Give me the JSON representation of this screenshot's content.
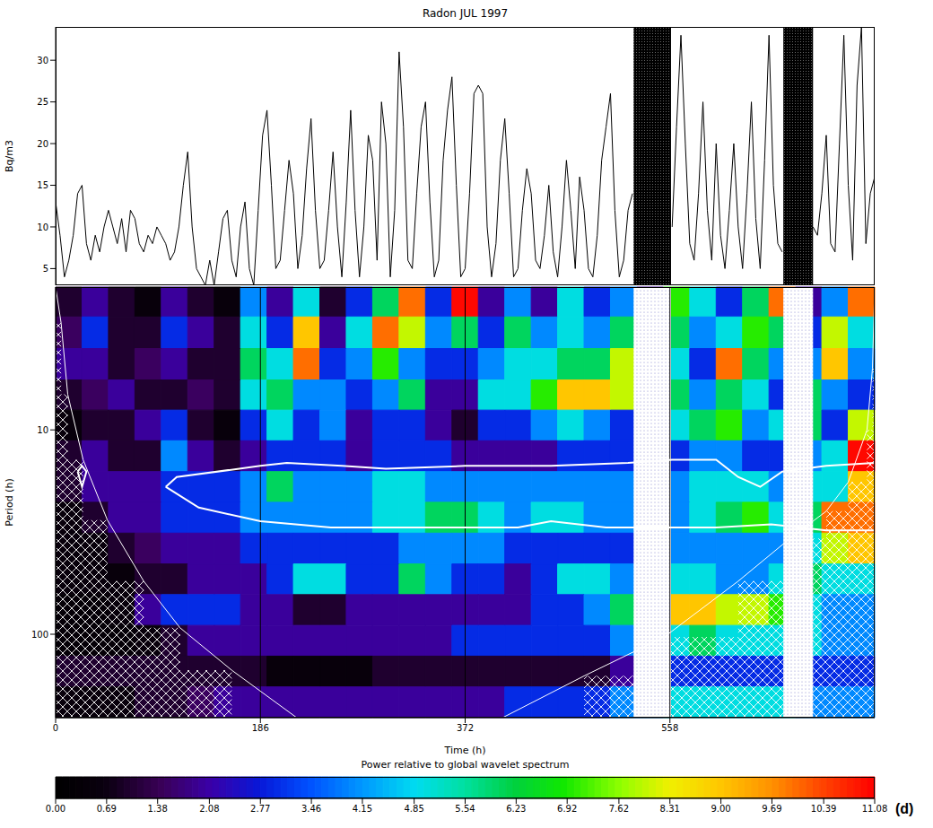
{
  "chart_data": [
    {
      "type": "line",
      "title": "Radon JUL 1997",
      "y_label": "Bq/m3",
      "color": "#000000",
      "xlim": [
        0,
        744
      ],
      "ylim": [
        3,
        34
      ],
      "yticks": [
        5,
        10,
        15,
        20,
        25,
        30
      ],
      "tick_labels": "y",
      "data_gaps": [
        [
          525,
          559
        ],
        [
          661,
          688
        ]
      ],
      "x": [
        0,
        4,
        8,
        12,
        16,
        20,
        24,
        28,
        32,
        36,
        40,
        44,
        48,
        52,
        56,
        60,
        64,
        68,
        72,
        76,
        80,
        84,
        88,
        92,
        96,
        100,
        104,
        108,
        112,
        116,
        120,
        124,
        128,
        132,
        136,
        140,
        144,
        148,
        152,
        156,
        160,
        164,
        168,
        172,
        176,
        180,
        184,
        188,
        192,
        196,
        200,
        204,
        208,
        212,
        216,
        220,
        224,
        228,
        232,
        236,
        240,
        244,
        248,
        252,
        256,
        260,
        264,
        268,
        272,
        276,
        280,
        284,
        288,
        292,
        296,
        300,
        304,
        308,
        312,
        316,
        320,
        324,
        328,
        332,
        336,
        340,
        344,
        348,
        352,
        356,
        360,
        364,
        368,
        372,
        376,
        380,
        384,
        388,
        392,
        396,
        400,
        404,
        408,
        412,
        416,
        420,
        424,
        428,
        432,
        436,
        440,
        444,
        448,
        452,
        456,
        460,
        464,
        468,
        472,
        476,
        480,
        484,
        488,
        492,
        496,
        500,
        504,
        508,
        512,
        516,
        520,
        524,
        528,
        532,
        536,
        540,
        544,
        548,
        552,
        556,
        560,
        564,
        568,
        572,
        576,
        580,
        584,
        588,
        592,
        596,
        600,
        604,
        608,
        612,
        616,
        620,
        624,
        628,
        632,
        636,
        640,
        644,
        648,
        652,
        656,
        660,
        664,
        668,
        672,
        676,
        680,
        684,
        688,
        692,
        696,
        700,
        704,
        708,
        712,
        716,
        720,
        724,
        728,
        732,
        736,
        740,
        744
      ],
      "values": [
        13,
        9,
        4,
        6,
        9,
        14,
        15,
        8,
        6,
        9,
        7,
        10,
        12,
        10,
        8,
        11,
        7,
        12,
        11,
        8,
        7,
        9,
        8,
        10,
        9,
        8,
        6,
        7,
        10,
        15,
        19,
        10,
        5,
        4,
        3,
        6,
        3,
        7,
        11,
        12,
        6,
        4,
        10,
        13,
        5,
        3,
        12,
        21,
        24,
        15,
        5,
        6,
        12,
        18,
        14,
        5,
        9,
        17,
        23,
        12,
        5,
        6,
        12,
        19,
        10,
        4,
        13,
        24,
        12,
        4,
        10,
        21,
        18,
        6,
        25,
        20,
        4,
        12,
        31,
        22,
        6,
        5,
        14,
        22,
        25,
        13,
        4,
        6,
        18,
        24,
        28,
        15,
        4,
        5,
        14,
        26,
        27,
        26,
        10,
        4,
        8,
        18,
        23,
        14,
        4,
        5,
        12,
        17,
        14,
        6,
        5,
        9,
        15,
        7,
        4,
        10,
        18,
        12,
        5,
        16,
        12,
        5,
        4,
        9,
        18,
        22,
        26,
        12,
        4,
        6,
        12,
        14,
        null,
        null,
        null,
        null,
        null,
        null,
        null,
        null,
        10,
        22,
        33,
        20,
        8,
        6,
        14,
        25,
        12,
        6,
        20,
        9,
        5,
        12,
        20,
        10,
        5,
        14,
        25,
        11,
        5,
        18,
        33,
        15,
        8,
        7,
        null,
        null,
        null,
        null,
        null,
        null,
        10,
        9,
        14,
        21,
        8,
        7,
        20,
        33,
        15,
        6,
        27,
        34,
        8,
        14,
        16
      ]
    },
    {
      "type": "heatmap",
      "x_label": "Time (h)",
      "y_label": "Period (h)",
      "log": "y",
      "grid": true,
      "xlim": [
        0,
        744
      ],
      "xticks": [
        0,
        186,
        372,
        558
      ],
      "ylim": [
        2,
        256
      ],
      "yticks": [
        10,
        100
      ],
      "data_gaps": [
        [
          525,
          559
        ],
        [
          661,
          688
        ]
      ],
      "time_edges": [
        0,
        24,
        48,
        72,
        96,
        120,
        144,
        168,
        192,
        216,
        240,
        264,
        288,
        312,
        336,
        360,
        384,
        408,
        432,
        456,
        480,
        504,
        528,
        552,
        576,
        600,
        624,
        648,
        672,
        696,
        720,
        744
      ],
      "period_edges": [
        2,
        2.8,
        4,
        5.7,
        8,
        11.3,
        16,
        22.6,
        32,
        45.3,
        64,
        90.5,
        128,
        181,
        256
      ],
      "cells": [
        [
          1,
          2,
          1,
          0.5,
          2,
          1,
          0.5,
          4,
          2,
          5,
          1,
          3,
          6,
          10,
          3,
          11,
          2,
          4,
          2,
          5,
          3,
          4,
          2,
          7,
          5,
          3,
          6,
          10,
          2,
          4,
          10
        ],
        [
          1.5,
          3,
          1,
          1,
          3,
          2,
          1,
          5,
          3,
          9,
          2,
          5,
          10,
          8,
          4,
          6,
          3,
          6,
          4,
          5,
          4,
          6,
          2,
          6,
          4,
          5,
          7,
          6,
          3,
          8,
          5
        ],
        [
          2,
          2,
          1,
          1.5,
          2,
          1,
          1,
          6,
          5,
          10,
          3,
          4,
          7,
          4,
          3,
          3,
          4,
          5,
          5,
          6,
          6,
          8,
          2,
          5,
          3,
          10,
          6,
          4,
          4,
          9,
          4
        ],
        [
          1,
          1.5,
          2,
          1,
          1,
          1.5,
          1,
          5,
          6,
          4,
          4,
          3,
          4,
          6,
          2,
          2,
          5,
          5,
          7,
          9,
          9,
          8,
          2,
          6,
          4,
          6,
          5,
          3,
          6,
          4,
          3
        ],
        [
          0.5,
          1,
          1,
          2,
          3,
          1,
          0.5,
          3,
          5,
          3,
          4,
          2,
          3,
          3,
          2,
          1,
          3,
          3,
          4,
          5,
          4,
          3,
          2,
          5,
          6,
          7,
          4,
          5,
          6,
          3,
          8
        ],
        [
          1,
          2,
          1,
          1,
          4,
          2,
          1,
          2,
          3,
          3,
          3,
          2,
          3,
          3,
          3,
          2,
          2,
          2,
          2,
          3,
          3,
          3,
          2,
          3,
          4,
          4,
          3,
          3,
          4,
          5,
          11
        ],
        [
          1,
          2,
          2,
          2,
          3,
          3,
          3,
          4,
          6,
          4,
          4,
          4,
          5,
          5,
          4,
          4,
          4,
          4,
          4,
          4,
          4,
          4,
          3,
          4,
          5,
          5,
          5,
          4,
          5,
          5,
          9
        ],
        [
          0.5,
          1,
          2,
          2,
          3,
          3,
          3,
          4,
          4,
          4,
          4,
          4,
          5,
          5,
          6,
          6,
          5,
          4,
          5,
          5,
          4,
          4,
          3,
          4,
          5,
          6,
          7,
          5,
          6,
          10,
          10
        ],
        [
          0.5,
          0.5,
          1,
          1.5,
          2,
          2,
          2,
          3,
          3,
          3,
          3,
          3,
          3,
          4,
          4,
          4,
          4,
          3,
          3,
          3,
          3,
          3,
          3,
          4,
          4,
          4,
          4,
          4,
          5,
          8,
          9
        ],
        [
          0.5,
          0.5,
          0.5,
          1,
          1,
          2,
          2,
          2,
          3,
          5,
          5,
          3,
          3,
          6,
          4,
          3,
          3,
          2,
          3,
          5,
          5,
          4,
          4,
          5,
          5,
          4,
          4,
          5,
          6,
          5,
          5
        ],
        [
          0.3,
          0.3,
          0.5,
          2,
          3,
          3,
          3,
          2,
          2,
          1,
          1,
          2,
          2,
          2,
          2,
          2,
          2,
          2,
          3,
          3,
          4,
          6,
          7,
          9,
          9,
          8,
          8,
          7,
          5,
          4,
          4
        ],
        [
          0.3,
          0.3,
          0.3,
          0.5,
          1,
          2,
          2,
          2,
          2,
          2,
          2,
          2,
          2,
          2,
          2,
          3,
          3,
          3,
          3,
          3,
          3,
          4,
          5,
          5,
          6,
          5,
          5,
          5,
          5,
          4,
          4
        ],
        [
          1,
          1,
          1,
          1,
          1,
          1,
          1,
          1,
          0.5,
          0.5,
          0.5,
          0.5,
          1,
          1,
          1,
          1,
          1,
          1,
          1,
          1,
          1,
          2,
          2,
          3,
          3,
          3,
          3,
          3,
          3,
          3,
          3
        ],
        [
          0.5,
          0.5,
          0.5,
          1,
          1,
          1.5,
          2,
          2,
          2,
          2,
          2,
          2,
          2,
          2,
          2,
          2,
          2,
          3,
          3,
          3,
          3,
          4,
          4,
          5,
          5,
          5,
          5,
          5,
          4,
          4,
          4
        ]
      ],
      "significance_contours": [
        {
          "x": [
            100,
            110,
            186,
            210,
            260,
            300,
            372,
            450,
            520,
            560,
            600,
            620,
            640,
            660,
            700,
            744,
            744,
            700,
            650,
            600,
            560,
            500,
            450,
            420,
            372,
            300,
            250,
            186,
            130,
            100
          ],
          "period": [
            19,
            17,
            15,
            14.5,
            15,
            15.5,
            15,
            15,
            14.5,
            14,
            14,
            17,
            19,
            16,
            15,
            14.5,
            31,
            31,
            29,
            30,
            30,
            30,
            28,
            30,
            30,
            30,
            30,
            28,
            24,
            19
          ]
        },
        {
          "x": [
            20,
            24,
            28,
            24,
            20
          ],
          "period": [
            16,
            15,
            16,
            19,
            16
          ]
        }
      ],
      "cone_of_influence": [
        {
          "x": [
            0,
            5,
            11,
            25,
            47,
            80,
            113,
            160,
            219
          ],
          "period": [
            2,
            3,
            6.7,
            14,
            27.6,
            55,
            93,
            150,
            256
          ]
        },
        {
          "x": [
            406,
            480,
            553,
            620,
            667,
            700,
            720,
            737,
            742,
            744
          ],
          "period": [
            256,
            160,
            103,
            55,
            34,
            25,
            18,
            10,
            5,
            2
          ]
        }
      ],
      "colorbar": {
        "title": "Power relative to global wavelet spectrum",
        "range": [
          0,
          11.08
        ],
        "ticks": [
          {
            "value": 0,
            "label": "0.00"
          },
          0.69,
          1.38,
          2.08,
          2.77,
          3.46,
          4.15,
          4.85,
          5.54,
          6.23,
          6.92,
          7.62,
          8.31,
          {
            "value": 9,
            "label": "9.00"
          },
          9.69,
          10.39,
          11.08
        ]
      },
      "panel_label": "(d)"
    }
  ]
}
